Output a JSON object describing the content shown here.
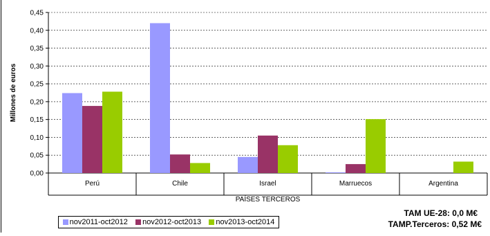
{
  "chart_data": {
    "type": "bar",
    "categories": [
      "Perú",
      "Chile",
      "Israel",
      "Marruecos",
      "Argentina"
    ],
    "series": [
      {
        "name": "nov2011-oct2012",
        "color": "#9999ff",
        "values": [
          0.224,
          0.42,
          0.045,
          0.002,
          0.0
        ]
      },
      {
        "name": "nov2012-oct2013",
        "color": "#993366",
        "values": [
          0.188,
          0.052,
          0.105,
          0.025,
          0.0
        ]
      },
      {
        "name": "nov2013-oct2014",
        "color": "#99cc00",
        "values": [
          0.228,
          0.028,
          0.078,
          0.151,
          0.032
        ]
      }
    ],
    "xlabel": "PAÍSES TERCEROS",
    "ylabel": "Millones de euros",
    "ylim": [
      0,
      0.45
    ],
    "yticks": [
      "0,00",
      "0,05",
      "0,10",
      "0,15",
      "0,20",
      "0,25",
      "0,30",
      "0,35",
      "0,40",
      "0,45"
    ],
    "grid": true,
    "legend_position": "bottom-left"
  },
  "tam_ue": "TAM UE-28: 0,0 M€",
  "tam_terceros": "TAMP.Terceros: 0,52 M€"
}
